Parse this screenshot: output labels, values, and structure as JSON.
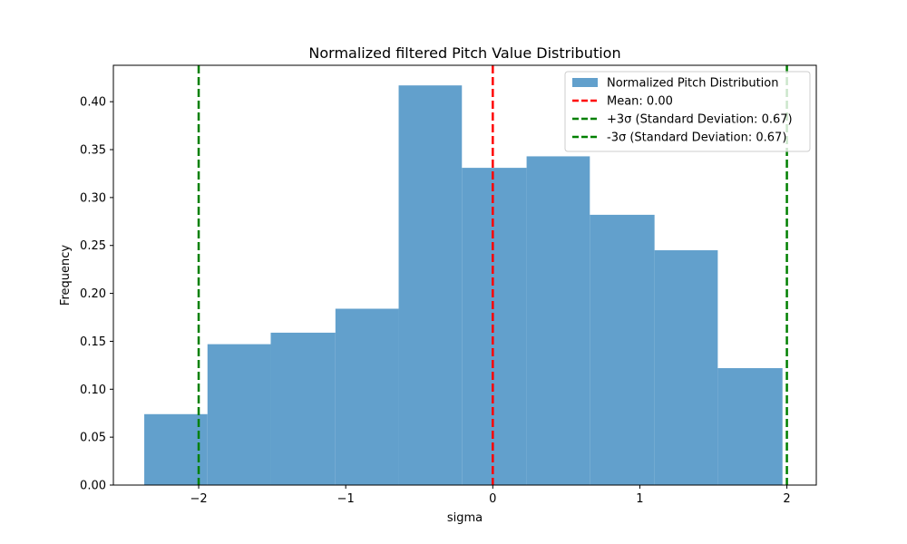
{
  "chart_data": {
    "type": "bar",
    "title": "Normalized filtered Pitch Value Distribution",
    "xlabel": "sigma",
    "ylabel": "Frequency",
    "xlim": [
      -2.58,
      2.2
    ],
    "ylim": [
      0,
      0.438
    ],
    "xticks": [
      -2,
      -1,
      0,
      1,
      2
    ],
    "xtick_labels": [
      "−2",
      "−1",
      "0",
      "1",
      "2"
    ],
    "yticks": [
      0.0,
      0.05,
      0.1,
      0.15,
      0.2,
      0.25,
      0.3,
      0.35,
      0.4
    ],
    "ytick_labels": [
      "0.00",
      "0.05",
      "0.10",
      "0.15",
      "0.20",
      "0.25",
      "0.30",
      "0.35",
      "0.40"
    ],
    "bins": [
      {
        "x0": -2.37,
        "x1": -1.94,
        "value": 0.074
      },
      {
        "x0": -1.94,
        "x1": -1.51,
        "value": 0.147
      },
      {
        "x0": -1.51,
        "x1": -1.07,
        "value": 0.159
      },
      {
        "x0": -1.07,
        "x1": -0.64,
        "value": 0.184
      },
      {
        "x0": -0.64,
        "x1": -0.21,
        "value": 0.417
      },
      {
        "x0": -0.21,
        "x1": 0.23,
        "value": 0.331
      },
      {
        "x0": 0.23,
        "x1": 0.66,
        "value": 0.343
      },
      {
        "x0": 0.66,
        "x1": 1.1,
        "value": 0.282
      },
      {
        "x0": 1.1,
        "x1": 1.53,
        "value": 0.245
      },
      {
        "x0": 1.53,
        "x1": 1.97,
        "value": 0.122
      }
    ],
    "series": [
      {
        "name": "Normalized Pitch Distribution",
        "kind": "hist",
        "color": "#5b9bd5"
      }
    ],
    "vlines": [
      {
        "x": 0.0,
        "color": "#ff0000",
        "style": "dashed",
        "label": "Mean: 0.00"
      },
      {
        "x": 2.0,
        "color": "#008000",
        "style": "dashed",
        "label": "+3σ (Standard Deviation: 0.67)"
      },
      {
        "x": -2.0,
        "color": "#008000",
        "style": "dashed",
        "label": "-3σ (Standard Deviation: 0.67)"
      }
    ],
    "legend": {
      "placement": "top-right",
      "entries": [
        {
          "label": "Normalized Pitch Distribution",
          "kind": "patch",
          "color": "#62a0cc"
        },
        {
          "label": "Mean: 0.00",
          "kind": "dashline",
          "color": "#ff0000"
        },
        {
          "label": "+3σ (Standard Deviation: 0.67)",
          "kind": "dashline",
          "color": "#008000"
        },
        {
          "label": "-3σ (Standard Deviation: 0.67)",
          "kind": "dashline",
          "color": "#008000"
        }
      ]
    },
    "grid": false
  }
}
